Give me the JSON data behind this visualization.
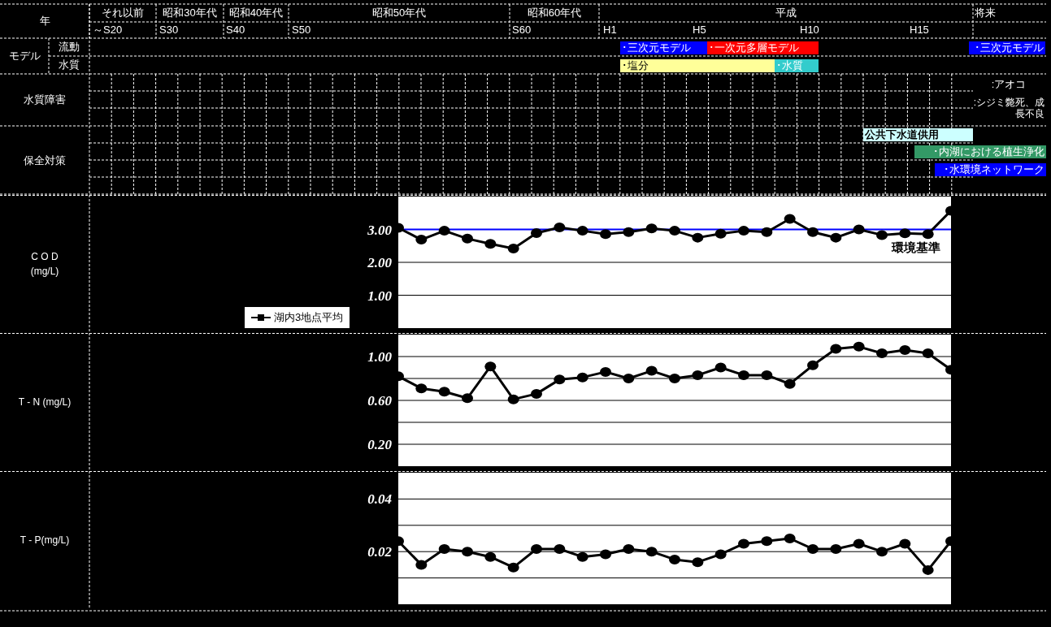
{
  "chart_data": [
    {
      "type": "other",
      "annotations": [
        "年",
        "それ以前",
        "昭和30年代",
        "昭和40年代",
        "昭和50年代",
        "昭和60年代",
        "平成",
        "将来",
        "～S20",
        "S30",
        "S40",
        "S50",
        "S60",
        "H1",
        "H5",
        "H10",
        "H15",
        "モデル",
        "流動",
        "水質",
        "･三次元モデル",
        "･一次元多層モデル",
        "･三次元モデル",
        "･塩分",
        "･水質",
        "水質障害",
        ":アオコ",
        ":シジミ斃死、成長不良",
        "保全対策",
        "公共下水道供用",
        "･内湖における植生浄化",
        "･水環境ネットワーク"
      ],
      "colors": [
        null,
        null,
        null,
        null,
        null,
        null,
        null,
        null,
        null,
        null,
        null,
        null,
        null,
        null,
        null,
        null,
        null,
        null,
        null,
        null,
        "#0000ff",
        "#ff0000",
        "#0000ff",
        "#ffff99",
        "#33cccc",
        null,
        null,
        null,
        null,
        "#ccffff",
        "#339966",
        "#0000ff"
      ]
    },
    {
      "type": "line",
      "ylabel": "C O D (mg/L)",
      "categories": [
        null,
        null,
        null,
        null,
        null,
        null,
        null,
        null,
        null,
        null,
        null,
        null,
        null,
        null,
        null,
        null,
        null,
        null,
        null,
        null,
        null,
        null,
        null,
        null,
        null
      ],
      "series": [
        {
          "name": "湖内3地点平均",
          "color": "#000000",
          "values": [
            3.05,
            2.69,
            2.96,
            2.72,
            2.56,
            2.42,
            2.89,
            3.06,
            2.96,
            2.86,
            2.92,
            3.03,
            2.96,
            2.75,
            2.87,
            2.96,
            2.92,
            3.32,
            2.92,
            2.75,
            3.0,
            2.83,
            2.88,
            2.86,
            3.57
          ]
        }
      ],
      "ylim": [
        0,
        4
      ],
      "yticks": [
        {
          "value": 1,
          "label": "1.00"
        },
        {
          "value": 2,
          "label": "2.00"
        },
        {
          "value": 3,
          "label": "3.00"
        }
      ],
      "ref_lines": [
        {
          "axis": "y",
          "value": 3,
          "label": "環境基準",
          "color": "#0000ff"
        }
      ],
      "grid": "y",
      "marker": "circle",
      "legend": "bottom left",
      "tick_labels": "y"
    },
    {
      "type": "line",
      "ylabel": "T - N (mg/L)",
      "categories": [
        null,
        null,
        null,
        null,
        null,
        null,
        null,
        null,
        null,
        null,
        null,
        null,
        null,
        null,
        null,
        null,
        null,
        null,
        null,
        null,
        null,
        null,
        null,
        null,
        null
      ],
      "series": [
        {
          "color": "#000000",
          "values": [
            0.82,
            0.71,
            0.68,
            0.62,
            0.91,
            0.61,
            0.66,
            0.79,
            0.81,
            0.86,
            0.8,
            0.87,
            0.8,
            0.83,
            0.9,
            0.83,
            0.83,
            0.75,
            0.92,
            1.07,
            1.09,
            1.03,
            1.06,
            1.03,
            0.88
          ]
        }
      ],
      "ylim": [
        0,
        1.2
      ],
      "yticks": [
        {
          "value": 0.2,
          "label": "0.20"
        },
        {
          "value": 0.4,
          "label": null
        },
        {
          "value": 0.6,
          "label": "0.60"
        },
        {
          "value": 0.8,
          "label": null
        },
        {
          "value": 1,
          "label": "1.00"
        }
      ],
      "grid": "y",
      "marker": "circle",
      "tick_labels": "y"
    },
    {
      "type": "line",
      "ylabel": "T - P(mg/L)",
      "categories": [
        null,
        null,
        null,
        null,
        null,
        null,
        null,
        null,
        null,
        null,
        null,
        null,
        null,
        null,
        null,
        null,
        null,
        null,
        null,
        null,
        null,
        null,
        null,
        null,
        null
      ],
      "series": [
        {
          "color": "#000000",
          "values": [
            0.024,
            0.015,
            0.021,
            0.02,
            0.018,
            0.014,
            0.021,
            0.021,
            0.018,
            0.019,
            0.021,
            0.02,
            0.017,
            0.016,
            0.019,
            0.023,
            0.024,
            0.025,
            0.021,
            0.021,
            0.023,
            0.02,
            0.023,
            0.013,
            0.024
          ]
        }
      ],
      "ylim": [
        0,
        0.05
      ],
      "yticks": [
        {
          "value": 0.01,
          "label": null
        },
        {
          "value": 0.02,
          "label": "0.02"
        },
        {
          "value": 0.03,
          "label": null
        },
        {
          "value": 0.04,
          "label": "0.04"
        }
      ],
      "grid": "y",
      "marker": "circle",
      "tick_labels": "y"
    }
  ]
}
